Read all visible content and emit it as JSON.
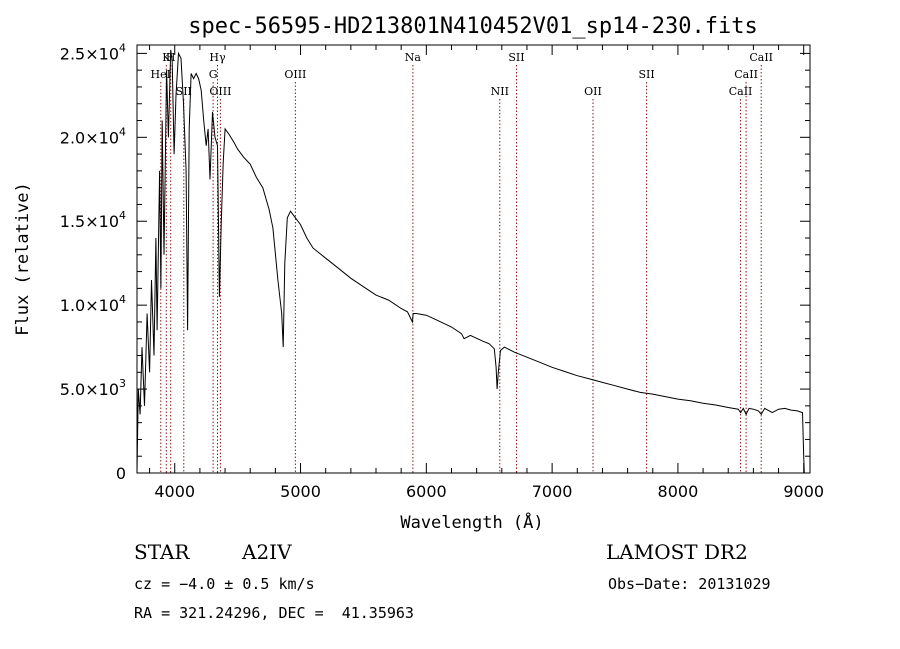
{
  "chart_data": {
    "type": "line",
    "title": "spec-56595-HD213801N410452V01_sp14-230.fits",
    "xlabel": "Wavelength (Å)",
    "ylabel": "Flux (relative)",
    "xlim": [
      3700,
      9050
    ],
    "ylim": [
      0,
      25500
    ],
    "x_ticks": [
      4000,
      5000,
      6000,
      7000,
      8000,
      9000
    ],
    "y_ticks": [
      {
        "value": 0,
        "mantissa": "0",
        "exponent": ""
      },
      {
        "value": 5000,
        "mantissa": "5.0×10",
        "exponent": "3"
      },
      {
        "value": 10000,
        "mantissa": "1.0×10",
        "exponent": "4"
      },
      {
        "value": 15000,
        "mantissa": "1.5×10",
        "exponent": "4"
      },
      {
        "value": 20000,
        "mantissa": "2.0×10",
        "exponent": "4"
      },
      {
        "value": 25000,
        "mantissa": "2.5×10",
        "exponent": "4"
      }
    ],
    "series": [
      {
        "x": [
          3700,
          3710,
          3725,
          3740,
          3760,
          3780,
          3800,
          3815,
          3835,
          3850,
          3860,
          3880,
          3890,
          3900,
          3915,
          3935,
          3950,
          3968,
          3980,
          3995,
          4010,
          4030,
          4050,
          4070,
          4090,
          4102,
          4115,
          4130,
          4150,
          4170,
          4190,
          4210,
          4230,
          4250,
          4265,
          4280,
          4300,
          4320,
          4340,
          4355,
          4370,
          4385,
          4400,
          4430,
          4470,
          4500,
          4550,
          4600,
          4650,
          4700,
          4750,
          4780,
          4820,
          4850,
          4862,
          4875,
          4895,
          4920,
          4950,
          5000,
          5050,
          5100,
          5200,
          5300,
          5400,
          5500,
          5600,
          5700,
          5800,
          5850,
          5889,
          5896,
          5920,
          6000,
          6100,
          6200,
          6280,
          6300,
          6350,
          6450,
          6500,
          6540,
          6555,
          6563,
          6572,
          6590,
          6620,
          6700,
          6800,
          6900,
          7000,
          7100,
          7200,
          7300,
          7400,
          7500,
          7600,
          7700,
          7800,
          7900,
          8000,
          8100,
          8200,
          8300,
          8400,
          8480,
          8498,
          8520,
          8542,
          8565,
          8600,
          8640,
          8662,
          8690,
          8750,
          8800,
          8850,
          8900,
          8950,
          8990,
          9000,
          9005
        ],
        "y": [
          0,
          5000,
          3500,
          7500,
          4000,
          9500,
          6000,
          11500,
          7000,
          14000,
          8500,
          18000,
          11000,
          21000,
          13000,
          24000,
          20000,
          25200,
          24500,
          19000,
          22500,
          25000,
          24700,
          22000,
          18000,
          8500,
          20500,
          23800,
          23500,
          23800,
          23500,
          22800,
          21000,
          19500,
          20500,
          17500,
          21500,
          20000,
          19500,
          10500,
          15000,
          18500,
          20500,
          20200,
          19700,
          19300,
          18800,
          18400,
          17600,
          17000,
          15700,
          14600,
          11500,
          9500,
          7500,
          12500,
          15200,
          15600,
          15300,
          14800,
          14000,
          13400,
          12800,
          12200,
          11600,
          11100,
          10600,
          10300,
          9800,
          9600,
          9000,
          9500,
          9500,
          9400,
          9050,
          8700,
          8300,
          8000,
          8200,
          7850,
          7700,
          7400,
          6300,
          5000,
          6000,
          7300,
          7500,
          7200,
          6900,
          6600,
          6300,
          6050,
          5800,
          5600,
          5400,
          5200,
          5000,
          4800,
          4700,
          4550,
          4400,
          4300,
          4150,
          4050,
          3900,
          3800,
          3600,
          3850,
          3500,
          3850,
          3800,
          3700,
          3500,
          3850,
          3600,
          3800,
          3850,
          3750,
          3700,
          3600,
          1000,
          0
        ]
      }
    ],
    "spectral_lines": [
      {
        "name": "HeI",
        "wavelength": 3889,
        "tier": 2
      },
      {
        "name": "K",
        "wavelength": 3933,
        "tier": 1
      },
      {
        "name": "H",
        "wavelength": 3968,
        "tier": 1
      },
      {
        "name": "SII",
        "wavelength": 4072,
        "tier": 3
      },
      {
        "name": "Hγ",
        "wavelength": 4340,
        "tier": 1
      },
      {
        "name": "G",
        "wavelength": 4305,
        "tier": 2
      },
      {
        "name": "OIII",
        "wavelength": 4363,
        "tier": 3
      },
      {
        "name": "OIII",
        "wavelength": 4959,
        "tier": 2
      },
      {
        "name": "Na",
        "wavelength": 5893,
        "tier": 1
      },
      {
        "name": "NII",
        "wavelength": 6584,
        "tier": 3
      },
      {
        "name": "SII",
        "wavelength": 6717,
        "tier": 1
      },
      {
        "name": "OII",
        "wavelength": 7325,
        "tier": 3
      },
      {
        "name": "SII",
        "wavelength": 7751,
        "tier": 2
      },
      {
        "name": "CaII",
        "wavelength": 8498,
        "tier": 3
      },
      {
        "name": "CaII",
        "wavelength": 8542,
        "tier": 2
      },
      {
        "name": "CaII",
        "wavelength": 8662,
        "tier": 1
      }
    ],
    "line_color": "#000000",
    "marker_color": "#8b1a1a",
    "grid": false
  },
  "info": {
    "object_class": "STAR",
    "subclass": "A2IV",
    "survey": "LAMOST DR2",
    "cz": "cz = −4.0 ± 0.5 km/s",
    "obs_date": "Obs−Date: 20131029",
    "coords": "RA = 321.24296, DEC =  41.35963"
  }
}
